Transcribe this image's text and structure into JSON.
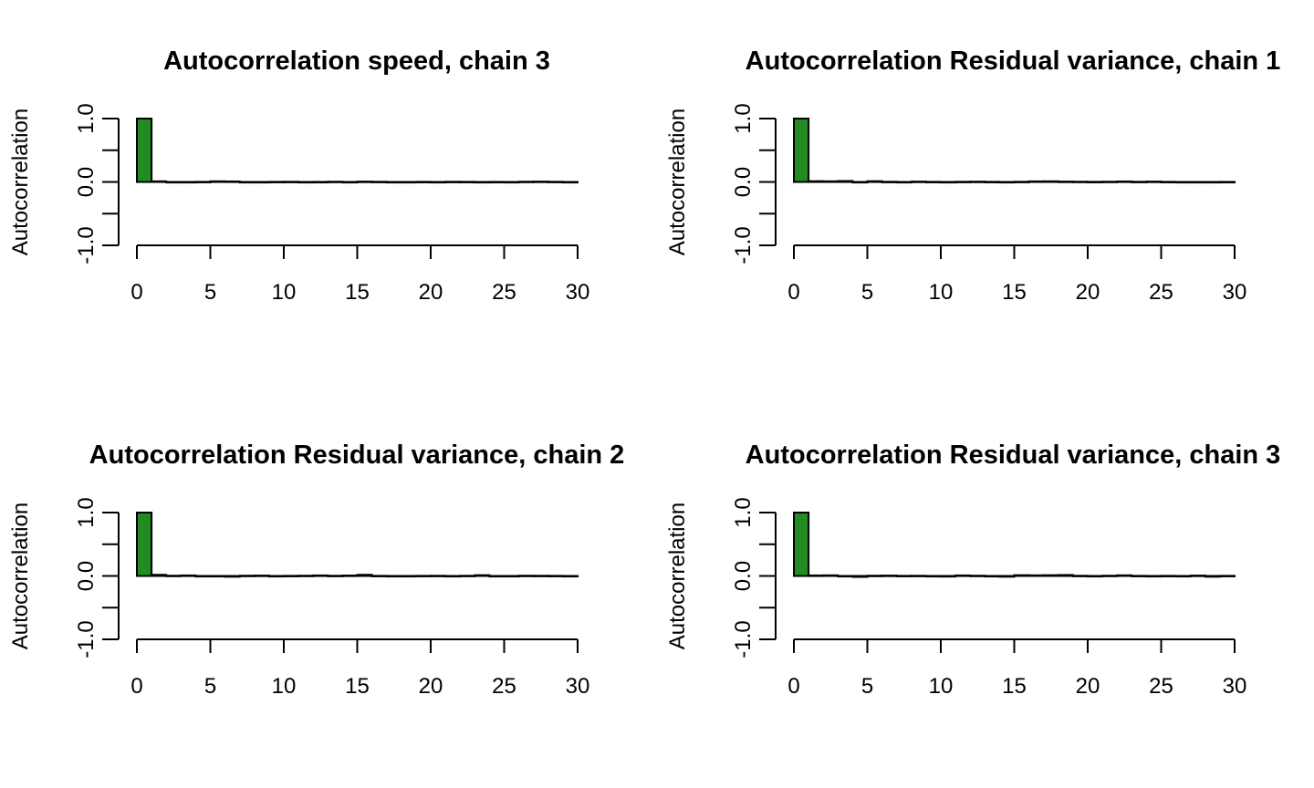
{
  "chart_data": [
    {
      "type": "bar",
      "title": "Autocorrelation speed, chain 3",
      "ylabel": "Autocorrelation",
      "xlabel": "",
      "xlim": [
        0,
        30
      ],
      "ylim": [
        -1,
        1
      ],
      "xticks": [
        "0",
        "5",
        "10",
        "15",
        "20",
        "25",
        "30"
      ],
      "yticks": [
        "-1.0",
        "",
        "0.0",
        "",
        "1.0"
      ],
      "bar_color": "#228B22",
      "x": [
        0,
        1,
        2,
        3,
        4,
        5,
        6,
        7,
        8,
        9,
        10,
        11,
        12,
        13,
        14,
        15,
        16,
        17,
        18,
        19,
        20,
        21,
        22,
        23,
        24,
        25,
        26,
        27,
        28,
        29
      ],
      "values": [
        1.0,
        0.01,
        -0.005,
        -0.003,
        0.002,
        0.01,
        0.008,
        -0.004,
        -0.006,
        0.002,
        0.003,
        -0.002,
        0.001,
        0.004,
        -0.008,
        0.006,
        0.003,
        -0.004,
        -0.006,
        0.002,
        -0.006,
        0.003,
        0.002,
        -0.003,
        0.001,
        -0.002,
        0.004,
        0.006,
        0.003,
        -0.002
      ]
    },
    {
      "type": "bar",
      "title": "Autocorrelation Residual variance, chain 1",
      "ylabel": "Autocorrelation",
      "xlabel": "",
      "xlim": [
        0,
        30
      ],
      "ylim": [
        -1,
        1
      ],
      "xticks": [
        "0",
        "5",
        "10",
        "15",
        "20",
        "25",
        "30"
      ],
      "yticks": [
        "-1.0",
        "",
        "0.0",
        "",
        "1.0"
      ],
      "bar_color": "#228B22",
      "x": [
        0,
        1,
        2,
        3,
        4,
        5,
        6,
        7,
        8,
        9,
        10,
        11,
        12,
        13,
        14,
        15,
        16,
        17,
        18,
        19,
        20,
        21,
        22,
        23,
        24,
        25,
        26,
        27,
        28,
        29
      ],
      "values": [
        1.0,
        0.012,
        0.01,
        0.015,
        -0.004,
        0.012,
        0.003,
        -0.006,
        0.006,
        0.002,
        -0.008,
        0.003,
        0.005,
        0.002,
        -0.004,
        0.003,
        0.009,
        0.01,
        0.006,
        0.004,
        0.002,
        0.004,
        0.008,
        0.003,
        0.006,
        0.002,
        -0.003,
        -0.004,
        -0.006,
        0.001
      ]
    },
    {
      "type": "bar",
      "title": "Autocorrelation Residual variance, chain 2",
      "ylabel": "Autocorrelation",
      "xlabel": "",
      "xlim": [
        0,
        30
      ],
      "ylim": [
        -1,
        1
      ],
      "xticks": [
        "0",
        "5",
        "10",
        "15",
        "20",
        "25",
        "30"
      ],
      "yticks": [
        "-1.0",
        "",
        "0.0",
        "",
        "1.0"
      ],
      "bar_color": "#228B22",
      "x": [
        0,
        1,
        2,
        3,
        4,
        5,
        6,
        7,
        8,
        9,
        10,
        11,
        12,
        13,
        14,
        15,
        16,
        17,
        18,
        19,
        20,
        21,
        22,
        23,
        24,
        25,
        26,
        27,
        28,
        29
      ],
      "values": [
        1.0,
        0.018,
        0.004,
        0.008,
        -0.004,
        -0.006,
        -0.012,
        0.004,
        0.006,
        -0.006,
        0.002,
        0.004,
        0.008,
        0.003,
        0.007,
        0.018,
        0.002,
        -0.003,
        -0.005,
        0.002,
        0.003,
        -0.007,
        0.003,
        0.012,
        -0.002,
        -0.008,
        0.004,
        0.003,
        0.002,
        -0.004
      ]
    },
    {
      "type": "bar",
      "title": "Autocorrelation Residual variance, chain 3",
      "ylabel": "Autocorrelation",
      "xlabel": "",
      "xlim": [
        0,
        30
      ],
      "ylim": [
        -1,
        1
      ],
      "xticks": [
        "0",
        "5",
        "10",
        "15",
        "20",
        "25",
        "30"
      ],
      "yticks": [
        "-1.0",
        "",
        "0.0",
        "",
        "1.0"
      ],
      "bar_color": "#228B22",
      "x": [
        0,
        1,
        2,
        3,
        4,
        5,
        6,
        7,
        8,
        9,
        10,
        11,
        12,
        13,
        14,
        15,
        16,
        17,
        18,
        19,
        20,
        21,
        22,
        23,
        24,
        25,
        26,
        27,
        28,
        29
      ],
      "values": [
        1.0,
        0.008,
        0.01,
        -0.005,
        -0.015,
        0.004,
        0.006,
        0.002,
        0.003,
        -0.004,
        -0.01,
        0.008,
        0.004,
        -0.004,
        -0.012,
        0.012,
        0.01,
        0.012,
        0.015,
        0.003,
        -0.002,
        0.004,
        0.01,
        0.002,
        -0.003,
        0.002,
        -0.004,
        0.006,
        -0.012,
        0.002
      ]
    }
  ]
}
